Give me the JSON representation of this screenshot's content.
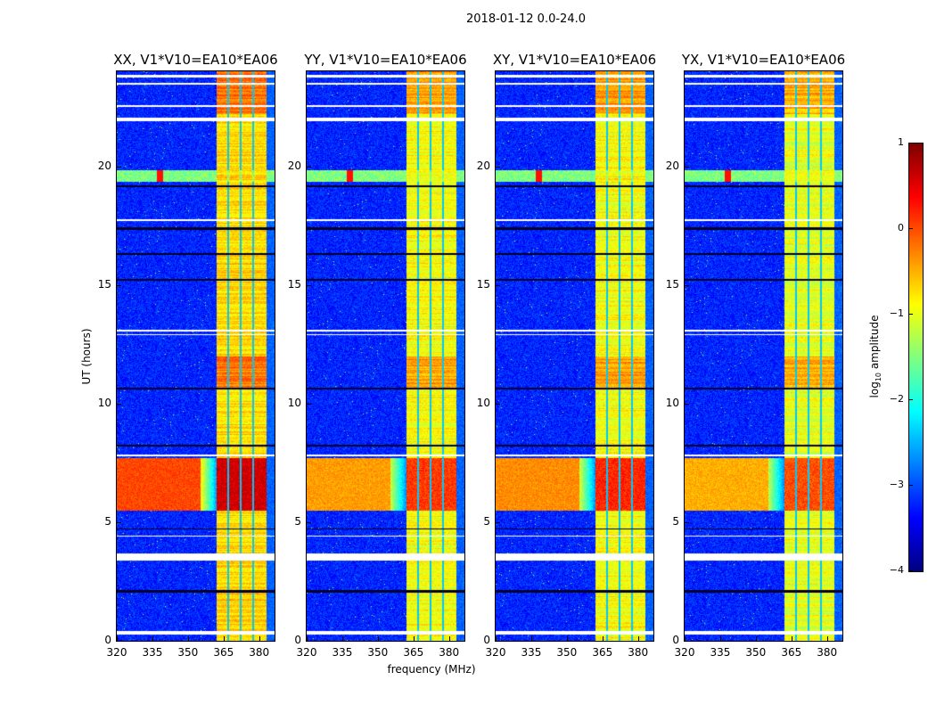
{
  "chart_data": {
    "type": "heatmap",
    "suptitle": "2018-01-12 0.0-24.0",
    "xlabel": "frequency (MHz)",
    "ylabel": "UT (hours)",
    "xlim": [
      320,
      386.5
    ],
    "ylim": [
      0,
      24
    ],
    "xticks": [
      "320",
      "335",
      "350",
      "365",
      "380"
    ],
    "xtick_values": [
      320,
      335,
      350,
      365,
      380
    ],
    "yticks": [
      "0",
      "5",
      "10",
      "15",
      "20"
    ],
    "ytick_values": [
      0,
      5,
      10,
      15,
      20
    ],
    "panels": [
      {
        "title": "XX, V1*V10=EA10*EA06",
        "band_level": -0.7,
        "night_level": 0.6
      },
      {
        "title": "YY, V1*V10=EA10*EA06",
        "band_level": -0.9,
        "night_level": 0.1
      },
      {
        "title": "XY, V1*V10=EA10*EA06",
        "band_level": -0.9,
        "night_level": 0.2
      },
      {
        "title": "YX, V1*V10=EA10*EA06",
        "band_level": -1.0,
        "night_level": 0.0
      }
    ],
    "background_level": -3.2,
    "band_range_mhz": [
      362,
      383
    ],
    "band_gaps_mhz": [
      366.9,
      372.1,
      377.4
    ],
    "flagged_hours": [
      [
        23.75,
        23.85
      ],
      [
        23.45,
        23.52
      ],
      [
        22.5,
        22.6
      ],
      [
        21.9,
        22.05
      ],
      [
        17.7,
        17.78
      ],
      [
        13.05,
        13.12
      ],
      [
        12.9,
        12.95
      ],
      [
        3.4,
        3.7
      ],
      [
        0.3,
        0.45
      ],
      [
        7.8,
        7.85
      ],
      [
        4.4,
        4.45
      ]
    ],
    "zero_hours": [
      [
        17.35,
        17.45
      ],
      [
        16.3,
        16.35
      ],
      [
        15.2,
        15.25
      ],
      [
        10.6,
        10.7
      ],
      [
        8.2,
        8.3
      ],
      [
        4.7,
        4.75
      ],
      [
        2.05,
        2.15
      ],
      [
        19.15,
        19.2
      ]
    ],
    "rfi_row": {
      "hour": 19.6,
      "peak_mhz": 338,
      "level": -1.5
    },
    "high_amplitude_hours": [
      5.5,
      7.7
    ],
    "colorbar": {
      "label": "log10 amplitude",
      "label_main": "log",
      "label_sub": "10",
      "label_rest": " amplitude",
      "range": [
        -4,
        1
      ],
      "ticks": [
        "1",
        "0",
        "−1",
        "−2",
        "−3",
        "−4"
      ],
      "tick_values": [
        1,
        0,
        -1,
        -2,
        -3,
        -4
      ],
      "colormap": "jet"
    }
  }
}
